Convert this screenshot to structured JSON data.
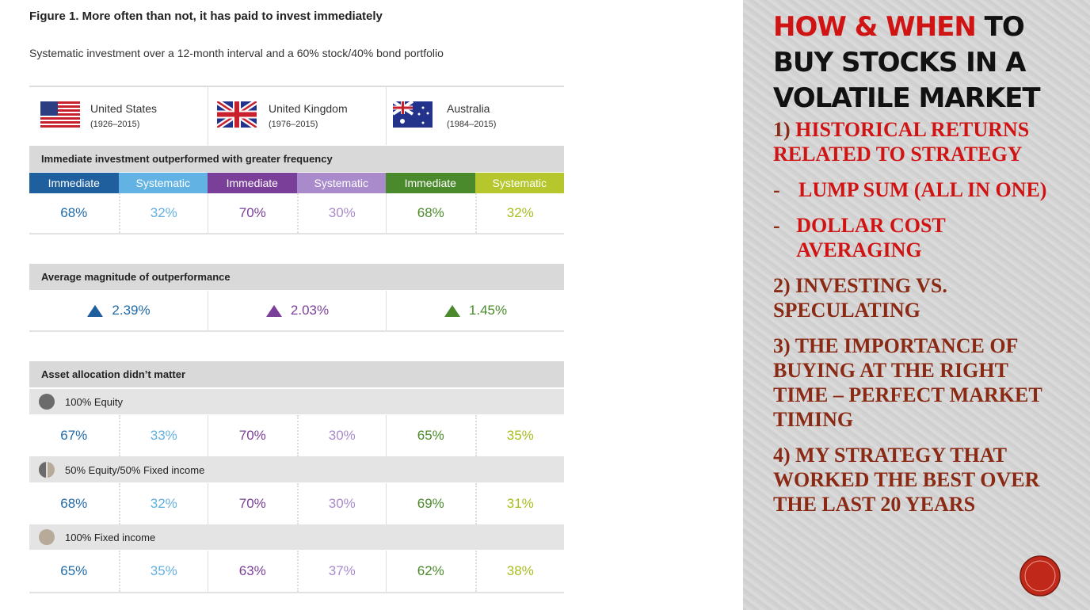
{
  "figure": {
    "title": "Figure 1. More often than not, it has paid to invest immediately",
    "subtitle": "Systematic investment over a 12-month interval and a 60% stock/40% bond portfolio",
    "countries": [
      {
        "name": "United States",
        "years": "(1926–2015)"
      },
      {
        "name": "United Kingdom",
        "years": "(1976–2015)"
      },
      {
        "name": "Australia",
        "years": "(1984–2015)"
      }
    ],
    "frequency": {
      "heading": "Immediate investment outperformed with greater frequency",
      "column_headers": [
        "Immediate",
        "Systematic",
        "Immediate",
        "Systematic",
        "Immediate",
        "Systematic"
      ],
      "values": [
        "68%",
        "32%",
        "70%",
        "30%",
        "68%",
        "32%"
      ]
    },
    "magnitude": {
      "heading": "Average magnitude of outperformance",
      "values": [
        "2.39%",
        "2.03%",
        "1.45%"
      ]
    },
    "allocation": {
      "heading": "Asset allocation didn’t matter",
      "rows": [
        {
          "label": "100% Equity",
          "values": [
            "67%",
            "33%",
            "70%",
            "30%",
            "65%",
            "35%"
          ]
        },
        {
          "label": "50% Equity/50% Fixed income",
          "values": [
            "68%",
            "32%",
            "70%",
            "30%",
            "69%",
            "31%"
          ]
        },
        {
          "label": "100% Fixed income",
          "values": [
            "65%",
            "35%",
            "63%",
            "37%",
            "62%",
            "38%"
          ]
        }
      ]
    }
  },
  "slide": {
    "title_highlight": "HOW & WHEN",
    "title_rest": "TO BUY STOCKS IN A VOLATILE MARKET",
    "items": [
      {
        "number": "1)",
        "text": "HISTORICAL RETURNS RELATED TO STRATEGY",
        "subitems": [
          "LUMP SUM (ALL IN ONE)",
          "DOLLAR COST AVERAGING"
        ]
      },
      {
        "number": "2)",
        "text": "INVESTING VS. SPECULATING"
      },
      {
        "number": "3)",
        "text": "THE IMPORTANCE OF BUYING AT THE RIGHT TIME – PERFECT MARKET TIMING"
      },
      {
        "number": "4)",
        "text": "MY STRATEGY THAT WORKED THE BEST OVER THE LAST 20 YEARS"
      }
    ]
  }
}
